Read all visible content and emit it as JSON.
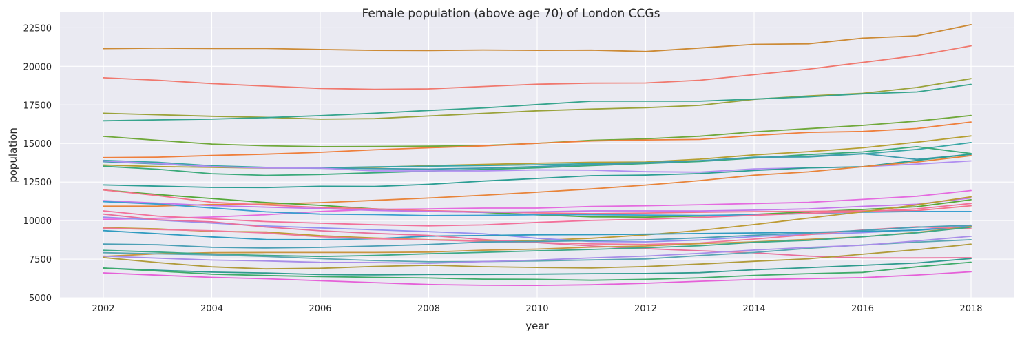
{
  "chart_data": {
    "type": "line",
    "title": "Female population (above age 70) of London CCGs",
    "xlabel": "year",
    "ylabel": "population",
    "xlim": [
      2001.2,
      2018.8
    ],
    "ylim": [
      5000,
      23500
    ],
    "x_ticks": [
      2002,
      2004,
      2006,
      2008,
      2010,
      2012,
      2014,
      2016,
      2018
    ],
    "y_ticks": [
      5000,
      7500,
      10000,
      12500,
      15000,
      17500,
      20000,
      22500
    ],
    "grid": true,
    "background": "#eaeaf2",
    "x": [
      2002,
      2003,
      2004,
      2005,
      2006,
      2007,
      2008,
      2009,
      2010,
      2011,
      2012,
      2013,
      2014,
      2015,
      2016,
      2017,
      2018
    ],
    "series": [
      {
        "color": "#cc8a35",
        "values": [
          21150,
          21180,
          21160,
          21160,
          21090,
          21040,
          21030,
          21060,
          21040,
          21050,
          20960,
          21190,
          21420,
          21460,
          21830,
          21980,
          22700
        ]
      },
      {
        "color": "#f0786e",
        "values": [
          19260,
          19100,
          18880,
          18720,
          18570,
          18510,
          18540,
          18690,
          18840,
          18910,
          18920,
          19100,
          19460,
          19820,
          20250,
          20700,
          21330
        ]
      },
      {
        "color": "#9aa23a",
        "values": [
          16960,
          16860,
          16760,
          16690,
          16580,
          16610,
          16780,
          16950,
          17120,
          17230,
          17320,
          17470,
          17860,
          18080,
          18250,
          18630,
          19200
        ]
      },
      {
        "color": "#36a48d",
        "values": [
          16470,
          16530,
          16580,
          16670,
          16800,
          16960,
          17140,
          17300,
          17520,
          17740,
          17740,
          17740,
          17880,
          18020,
          18220,
          18340,
          18830
        ]
      },
      {
        "color": "#70a83a",
        "values": [
          15460,
          15200,
          14960,
          14850,
          14790,
          14800,
          14820,
          14860,
          15010,
          15200,
          15300,
          15470,
          15750,
          15960,
          16170,
          16450,
          16810
        ]
      },
      {
        "color": "#ef7f3c",
        "values": [
          14080,
          14110,
          14220,
          14310,
          14430,
          14590,
          14720,
          14840,
          15010,
          15160,
          15230,
          15260,
          15520,
          15720,
          15780,
          15970,
          16390
        ]
      },
      {
        "color": "#b59f32",
        "values": [
          13600,
          13500,
          13450,
          13400,
          13420,
          13450,
          13560,
          13640,
          13720,
          13780,
          13800,
          13980,
          14260,
          14470,
          14720,
          15080,
          15490
        ]
      },
      {
        "color": "#38a6a5",
        "values": [
          13900,
          13780,
          13550,
          13450,
          13430,
          13480,
          13520,
          13570,
          13620,
          13690,
          13760,
          13860,
          14110,
          14120,
          14320,
          14610,
          15060
        ]
      },
      {
        "color": "#3aa97a",
        "values": [
          13520,
          13330,
          13040,
          12930,
          12990,
          13100,
          13210,
          13320,
          13420,
          13560,
          13700,
          13830,
          14050,
          14280,
          14450,
          14790,
          14350
        ]
      },
      {
        "color": "#3f9cad",
        "values": [
          13820,
          13680,
          13500,
          13420,
          13390,
          13370,
          13340,
          13400,
          13500,
          13630,
          13740,
          13890,
          14080,
          14170,
          14340,
          13970,
          14290
        ]
      },
      {
        "color": "#b08ef0",
        "values": [
          13870,
          13700,
          13500,
          13410,
          13400,
          13220,
          13220,
          13220,
          13290,
          13270,
          13170,
          13140,
          13350,
          13420,
          13490,
          13660,
          13870
        ]
      },
      {
        "color": "#2c9e94",
        "values": [
          12310,
          12230,
          12150,
          12140,
          12220,
          12210,
          12350,
          12560,
          12730,
          12910,
          12950,
          13050,
          13250,
          13420,
          13490,
          13900,
          14310
        ]
      },
      {
        "color": "#e8843a",
        "values": [
          10930,
          10940,
          11040,
          11070,
          11160,
          11310,
          11460,
          11640,
          11840,
          12050,
          12300,
          12590,
          12940,
          13160,
          13490,
          13800,
          14210
        ]
      },
      {
        "color": "#e46adf",
        "values": [
          10080,
          10150,
          10230,
          10380,
          10590,
          10730,
          10760,
          10810,
          10810,
          10910,
          10960,
          11030,
          11110,
          11180,
          11370,
          11580,
          11950
        ]
      },
      {
        "color": "#55a839",
        "values": [
          11990,
          11690,
          11430,
          11170,
          10990,
          10760,
          10610,
          10530,
          10370,
          10240,
          10220,
          10290,
          10400,
          10560,
          10720,
          10900,
          11350
        ]
      },
      {
        "color": "#f4728a",
        "values": [
          11990,
          11620,
          11190,
          11010,
          10850,
          10760,
          10650,
          10570,
          10500,
          10450,
          10490,
          10540,
          10580,
          10600,
          10630,
          10650,
          10960
        ]
      },
      {
        "color": "#c476ea",
        "values": [
          11290,
          11130,
          10970,
          10870,
          10780,
          10660,
          10590,
          10540,
          10570,
          10630,
          10630,
          10620,
          10680,
          10760,
          10920,
          11060,
          11460
        ]
      },
      {
        "color": "#3a9fd0",
        "values": [
          11230,
          11070,
          10820,
          10570,
          10420,
          10390,
          10320,
          10340,
          10380,
          10380,
          10360,
          10330,
          10370,
          10460,
          10540,
          10590,
          10590
        ]
      },
      {
        "color": "#f2709a",
        "values": [
          10630,
          10290,
          10110,
          9940,
          9830,
          9730,
          9660,
          9720,
          9880,
          10010,
          10090,
          10200,
          10340,
          10480,
          10570,
          10760,
          11110
        ]
      },
      {
        "color": "#bd9b34",
        "values": [
          9540,
          9460,
          9300,
          9260,
          9020,
          8870,
          8760,
          8700,
          8710,
          8850,
          9070,
          9360,
          9740,
          10160,
          10570,
          11020,
          11540
        ]
      },
      {
        "color": "#9590f0",
        "values": [
          10220,
          10030,
          9840,
          9650,
          9520,
          9400,
          9280,
          9150,
          8850,
          8640,
          8620,
          8740,
          8960,
          9100,
          9220,
          9400,
          9670
        ]
      },
      {
        "color": "#2f9bc0",
        "values": [
          9350,
          9150,
          8940,
          8770,
          8760,
          8820,
          8990,
          9030,
          9080,
          9090,
          9120,
          9160,
          9200,
          9240,
          9300,
          9370,
          9620
        ]
      },
      {
        "color": "#f07898",
        "values": [
          9510,
          9420,
          9340,
          9190,
          8950,
          8820,
          8750,
          8650,
          8580,
          8490,
          8450,
          8550,
          8800,
          9090,
          9390,
          9600,
          9470
        ]
      },
      {
        "color": "#e8709c",
        "values": [
          10420,
          10050,
          9920,
          9580,
          9340,
          9170,
          9040,
          8770,
          8570,
          8350,
          8180,
          8040,
          7910,
          7700,
          7580,
          7580,
          7590
        ]
      },
      {
        "color": "#4b9fb5",
        "values": [
          8480,
          8430,
          8270,
          8220,
          8260,
          8350,
          8450,
          8610,
          8640,
          8700,
          8750,
          8880,
          9050,
          9190,
          9360,
          9570,
          9700
        ]
      },
      {
        "color": "#c99640",
        "values": [
          7670,
          7850,
          7920,
          7930,
          7930,
          7930,
          7960,
          8080,
          8150,
          8280,
          8350,
          8510,
          8620,
          8780,
          8950,
          9230,
          9610
        ]
      },
      {
        "color": "#3ea988",
        "values": [
          8070,
          7960,
          7830,
          7740,
          7670,
          7740,
          7850,
          7940,
          8040,
          8130,
          8240,
          8370,
          8590,
          8720,
          8950,
          9210,
          9570
        ]
      },
      {
        "color": "#5aa6b2",
        "values": [
          7920,
          7840,
          7780,
          7670,
          7530,
          7410,
          7330,
          7340,
          7380,
          7450,
          7510,
          7730,
          7930,
          8200,
          8420,
          8600,
          8760
        ]
      },
      {
        "color": "#a88de8",
        "values": [
          7700,
          7560,
          7440,
          7380,
          7290,
          7280,
          7230,
          7340,
          7440,
          7580,
          7700,
          7880,
          8090,
          8260,
          8400,
          8680,
          8980
        ]
      },
      {
        "color": "#b09b3a",
        "values": [
          7600,
          7280,
          7000,
          6870,
          6910,
          7030,
          7110,
          7010,
          6960,
          6930,
          7020,
          7180,
          7360,
          7520,
          7820,
          8110,
          8470
        ]
      },
      {
        "color": "#2f9b8e",
        "values": [
          6920,
          6780,
          6660,
          6600,
          6500,
          6480,
          6510,
          6510,
          6530,
          6560,
          6570,
          6620,
          6810,
          6950,
          7100,
          7250,
          7540
        ]
      },
      {
        "color": "#3fab6a",
        "values": [
          6920,
          6730,
          6530,
          6440,
          6370,
          6320,
          6280,
          6200,
          6190,
          6130,
          6190,
          6290,
          6450,
          6560,
          6640,
          7000,
          7300
        ]
      },
      {
        "color": "#e560d8",
        "values": [
          6610,
          6460,
          6320,
          6230,
          6100,
          5980,
          5860,
          5810,
          5800,
          5840,
          5940,
          6070,
          6180,
          6240,
          6300,
          6470,
          6680
        ]
      }
    ]
  }
}
